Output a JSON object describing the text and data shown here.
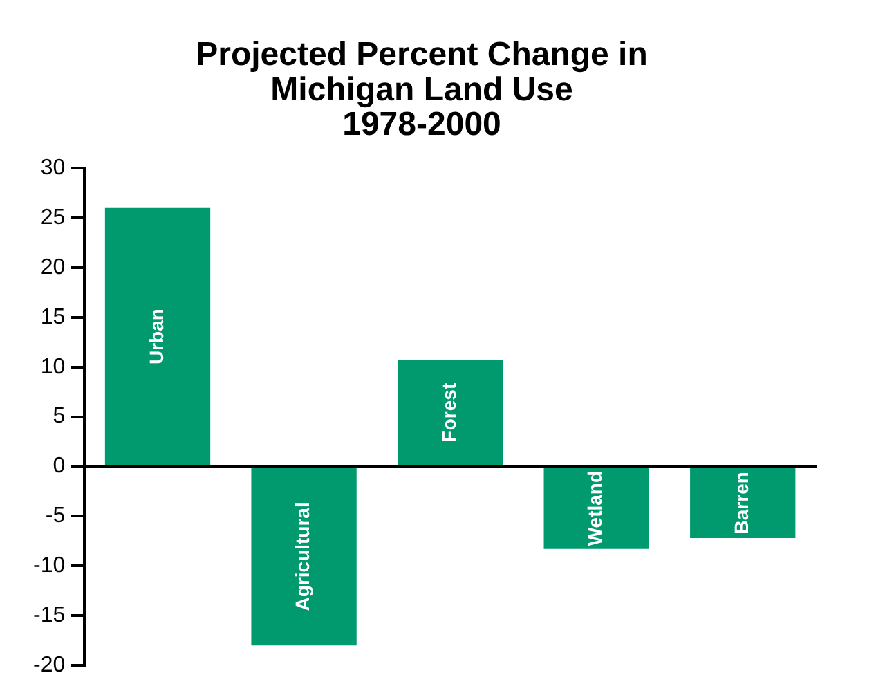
{
  "chart_data": {
    "type": "bar",
    "title": "Projected Percent Change in\nMichigan Land Use\n1978-2000",
    "categories": [
      "Urban",
      "Agricultural",
      "Forest",
      "Wetland",
      "Barren"
    ],
    "values": [
      26,
      -18,
      10.7,
      -8.3,
      -7.2
    ],
    "color": "#009a6e",
    "ylim": [
      -20,
      30
    ],
    "yticks": [
      -20,
      -15,
      -10,
      -5,
      0,
      5,
      10,
      15,
      20,
      25,
      30
    ],
    "grid": false,
    "legend": false
  }
}
